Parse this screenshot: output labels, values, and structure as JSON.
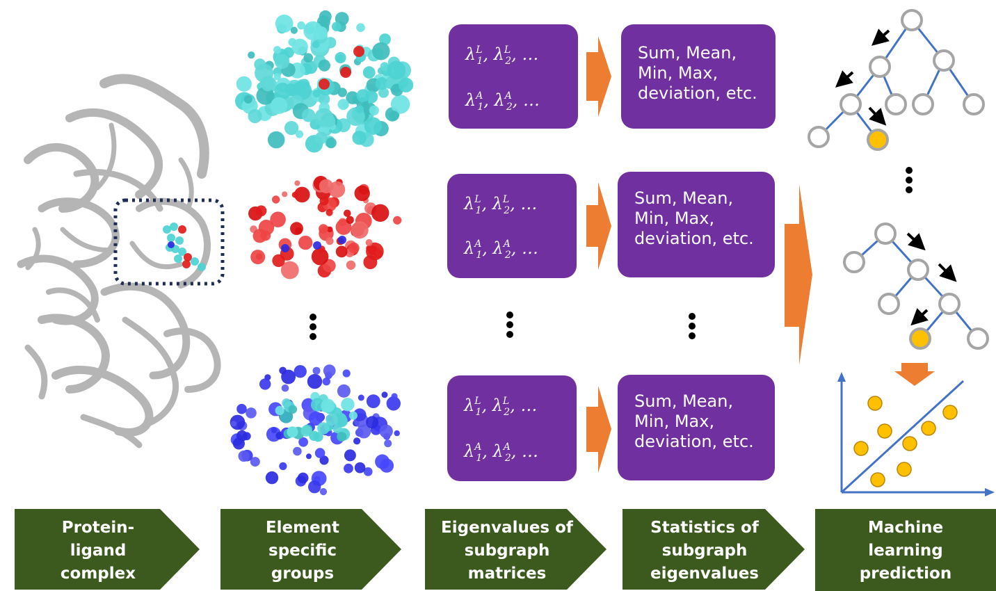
{
  "eigen_boxes": [
    {
      "line1_sym": "λ",
      "line1_sup1": "L",
      "line1_sub1": "1",
      "line1_sup2": "L",
      "line1_sub2": "2",
      "line1_tail": ", …",
      "line2_sym": "λ",
      "line2_sup1": "A",
      "line2_sub1": "1",
      "line2_sup2": "A",
      "line2_sub2": "2",
      "line2_tail": ", …"
    },
    {
      "line1_sym": "λ",
      "line1_sup1": "L",
      "line1_sub1": "1",
      "line1_sup2": "L",
      "line1_sub2": "2",
      "line1_tail": ", …",
      "line2_sym": "λ",
      "line2_sup1": "A",
      "line2_sub1": "1",
      "line2_sup2": "A",
      "line2_sub2": "2",
      "line2_tail": ", …"
    },
    {
      "line1_sym": "λ",
      "line1_sup1": "L",
      "line1_sub1": "1",
      "line1_sup2": "L",
      "line1_sub2": "2",
      "line1_tail": ", …",
      "line2_sym": "λ",
      "line2_sup1": "A",
      "line2_sub1": "1",
      "line2_sup2": "A",
      "line2_sub2": "2",
      "line2_tail": ", …"
    }
  ],
  "stat_boxes": [
    {
      "l1": "Sum, Mean,",
      "l2": "Min, Max,",
      "l3": "deviation, etc."
    },
    {
      "l1": "Sum, Mean,",
      "l2": "Min, Max,",
      "l3": "deviation, etc."
    },
    {
      "l1": "Sum, Mean,",
      "l2": "Min, Max,",
      "l3": "deviation, etc."
    }
  ],
  "steps": [
    {
      "l1": "Protein-",
      "l2": "ligand",
      "l3": "complex"
    },
    {
      "l1": "Element",
      "l2": "specific",
      "l3": "groups"
    },
    {
      "l1": "Eigenvalues of",
      "l2": "subgraph",
      "l3": "matrices"
    },
    {
      "l1": "Statistics of",
      "l2": "subgraph",
      "l3": "eigenvalues"
    },
    {
      "l1": "Machine",
      "l2": "learning",
      "l3": "prediction"
    }
  ],
  "colors": {
    "purple": "#7030a0",
    "orange": "#ed7d31",
    "green": "#3d5a1e",
    "tree_edge": "#4472c4",
    "node_stroke": "#a5a5a5",
    "highlight": "#ffc000",
    "cyan_atom": "#4dd3d3",
    "red_atom": "#e21b1b",
    "blue_atom": "#2b2be0",
    "protein": "#b8b8b8"
  },
  "icons": [
    "protein-ribbon",
    "atom-cloud",
    "decision-tree",
    "scatter-plot",
    "arrow-right",
    "vertical-ellipsis"
  ]
}
